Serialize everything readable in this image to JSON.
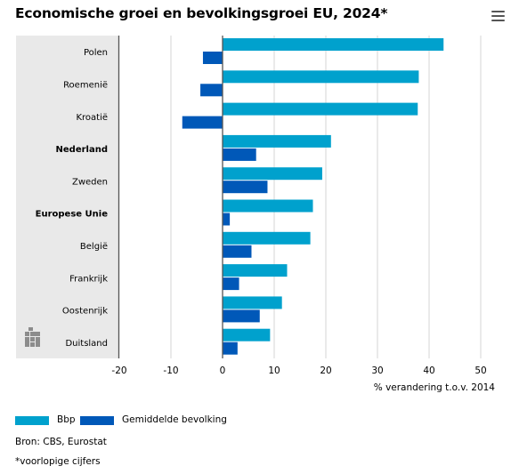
{
  "title": "Economische groei en bevolkingsgroei EU, 2024*",
  "source": "Bron: CBS, Eurostat",
  "footnote": "*voorlopige cijfers",
  "colors": {
    "bbp": "#00a1cd",
    "bevolking": "#0058b8",
    "panel": "#e9e9e9",
    "axis": "#555555"
  },
  "icons": {
    "menu": "hamburger-menu-icon",
    "logo": "cbs-logo-icon"
  },
  "chart_data": {
    "type": "bar",
    "orientation": "horizontal",
    "title": "Economische groei en bevolkingsgroei EU, 2024*",
    "xlabel": "% verandering t.o.v. 2014",
    "xlim": [
      -20,
      50
    ],
    "xticks": [
      -20,
      -10,
      0,
      10,
      20,
      30,
      40,
      50
    ],
    "grid": true,
    "legend_position": "bottom-left",
    "categories": [
      "Polen",
      "Roemenië",
      "Kroatië",
      "Nederland",
      "Zweden",
      "Europese Unie",
      "België",
      "Frankrijk",
      "Oostenrijk",
      "Duitsland"
    ],
    "bold_categories": [
      "Nederland",
      "Europese Unie"
    ],
    "series": [
      {
        "name": "Bbp",
        "color": "#00a1cd",
        "values": [
          42.8,
          38.0,
          37.8,
          21.0,
          19.3,
          17.5,
          17.0,
          12.5,
          11.5,
          9.2
        ]
      },
      {
        "name": "Gemiddelde bevolking",
        "color": "#0058b8",
        "values": [
          -3.8,
          -4.3,
          -7.8,
          6.5,
          8.7,
          1.4,
          5.6,
          3.2,
          7.2,
          2.9
        ]
      }
    ]
  }
}
